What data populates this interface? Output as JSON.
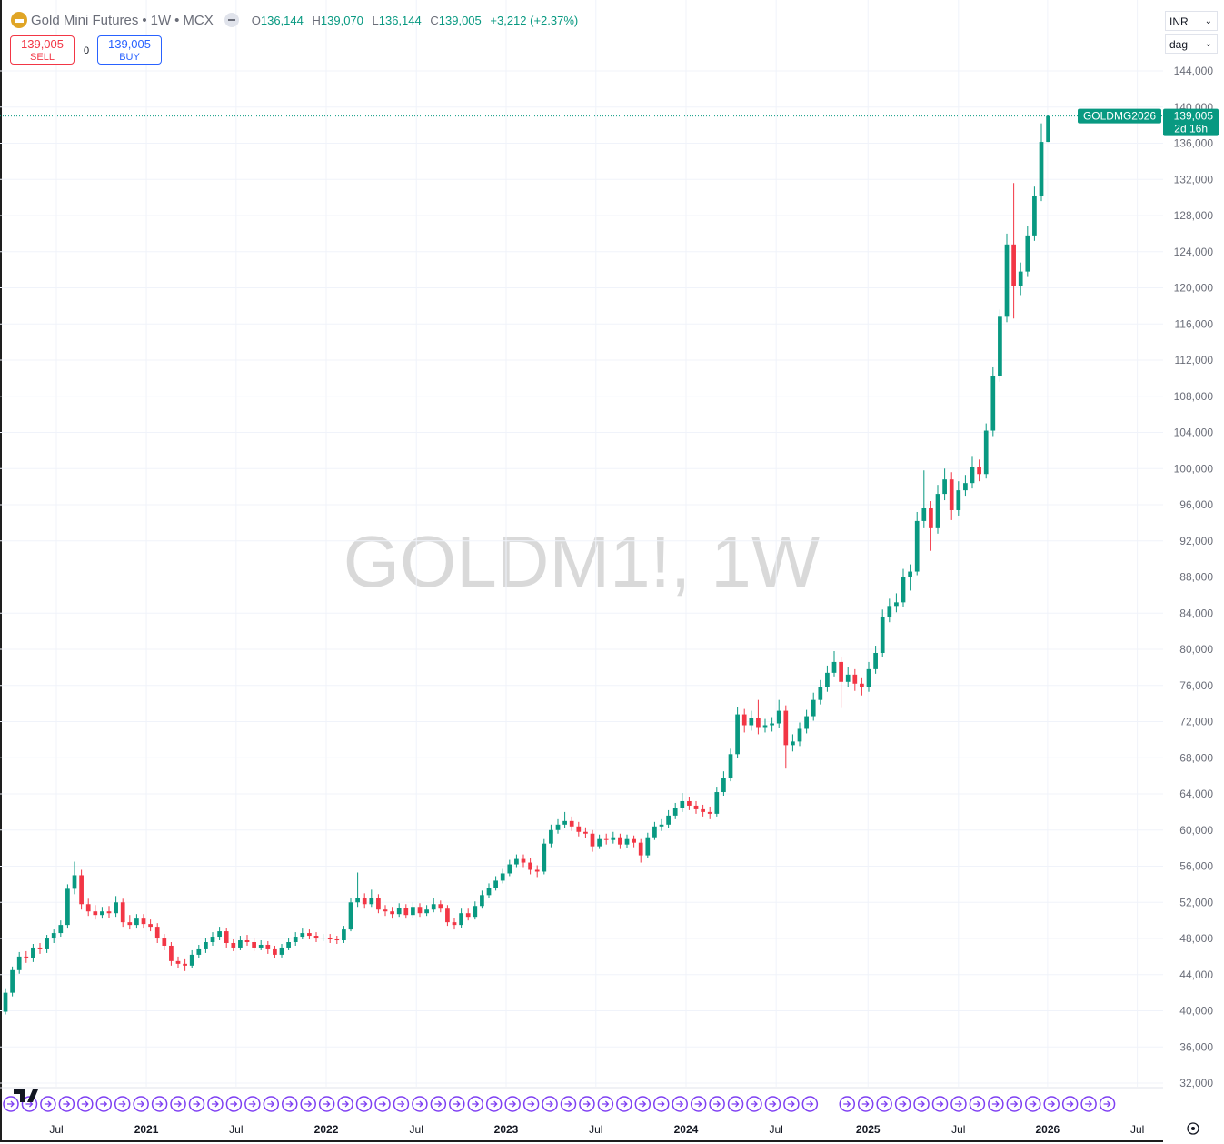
{
  "header": {
    "title": "Gold Mini Futures",
    "interval": "1W",
    "exchange": "MCX",
    "o_label": "O",
    "o": "136,144",
    "h_label": "H",
    "h": "139,070",
    "l_label": "L",
    "l": "136,144",
    "c_label": "C",
    "c": "139,005",
    "change": "+3,212 (+2.37%)",
    "sell_price": "139,005",
    "sell": "SELL",
    "spread": "0",
    "buy_price": "139,005",
    "buy": "BUY",
    "currency": "INR",
    "unit": "dag"
  },
  "chart_data": {
    "type": "candlestick",
    "watermark": "GOLDM1!, 1W",
    "grid": true,
    "ylim": [
      31600,
      151850
    ],
    "xlim": [
      -0.79,
      167.63
    ],
    "yticks": [
      {
        "value": 32000,
        "label": "32,000"
      },
      {
        "value": 36000,
        "label": "36,000"
      },
      {
        "value": 40000,
        "label": "40,000"
      },
      {
        "value": 44000,
        "label": "44,000"
      },
      {
        "value": 48000,
        "label": "48,000"
      },
      {
        "value": 52000,
        "label": "52,000"
      },
      {
        "value": 56000,
        "label": "56,000"
      },
      {
        "value": 60000,
        "label": "60,000"
      },
      {
        "value": 64000,
        "label": "64,000"
      },
      {
        "value": 68000,
        "label": "68,000"
      },
      {
        "value": 72000,
        "label": "72,000"
      },
      {
        "value": 76000,
        "label": "76,000"
      },
      {
        "value": 80000,
        "label": "80,000"
      },
      {
        "value": 84000,
        "label": "84,000"
      },
      {
        "value": 88000,
        "label": "88,000"
      },
      {
        "value": 92000,
        "label": "92,000"
      },
      {
        "value": 96000,
        "label": "96,000"
      },
      {
        "value": 100000,
        "label": "100,000"
      },
      {
        "value": 104000,
        "label": "104,000"
      },
      {
        "value": 108000,
        "label": "108,000"
      },
      {
        "value": 112000,
        "label": "112,000"
      },
      {
        "value": 116000,
        "label": "116,000"
      },
      {
        "value": 120000,
        "label": "120,000"
      },
      {
        "value": 124000,
        "label": "124,000"
      },
      {
        "value": 128000,
        "label": "128,000"
      },
      {
        "value": 132000,
        "label": "132,000"
      },
      {
        "value": 136000,
        "label": "136,000"
      },
      {
        "value": 140000,
        "label": "140,000"
      },
      {
        "value": 144000,
        "label": "144,000"
      }
    ],
    "xticks": [
      {
        "value": 7.37,
        "label": "Jul"
      },
      {
        "value": 20.4,
        "label": "2021"
      },
      {
        "value": 33.4,
        "label": "Jul"
      },
      {
        "value": 46.45,
        "label": "2022"
      },
      {
        "value": 59.5,
        "label": "Jul"
      },
      {
        "value": 72.5,
        "label": "2023"
      },
      {
        "value": 85.5,
        "label": "Jul"
      },
      {
        "value": 98.55,
        "label": "2024"
      },
      {
        "value": 111.6,
        "label": "Jul"
      },
      {
        "value": 124.9,
        "label": "2025"
      },
      {
        "value": 138.0,
        "label": "Jul"
      },
      {
        "value": 150.9,
        "label": "2026"
      },
      {
        "value": 163.9,
        "label": "Jul"
      }
    ],
    "last_price_label": "139,005",
    "countdown": "2d 16h",
    "series": [
      {
        "name": "GOLDMG2026",
        "up_color": "#089981",
        "down_color": "#f23645",
        "ohlc": [
          [
            39900,
            42400,
            39600,
            42000
          ],
          [
            42000,
            44900,
            41600,
            44500
          ],
          [
            44500,
            46500,
            44100,
            46000
          ],
          [
            46000,
            46600,
            45300,
            45800
          ],
          [
            45800,
            47400,
            45400,
            47000
          ],
          [
            47000,
            47500,
            46300,
            46800
          ],
          [
            46800,
            48400,
            46400,
            48000
          ],
          [
            48000,
            49000,
            47500,
            48600
          ],
          [
            48600,
            50000,
            48200,
            49500
          ],
          [
            49500,
            54000,
            49100,
            53500
          ],
          [
            53500,
            56500,
            52900,
            55000
          ],
          [
            55000,
            55600,
            51200,
            51800
          ],
          [
            51800,
            52400,
            50500,
            51000
          ],
          [
            51000,
            51700,
            50100,
            50600
          ],
          [
            50600,
            51500,
            50200,
            51000
          ],
          [
            51000,
            51600,
            50300,
            50800
          ],
          [
            50800,
            52700,
            50400,
            52000
          ],
          [
            52000,
            52400,
            49300,
            49800
          ],
          [
            49800,
            50600,
            49000,
            49500
          ],
          [
            49500,
            50700,
            49100,
            50200
          ],
          [
            50200,
            50700,
            49100,
            49600
          ],
          [
            49600,
            50100,
            48800,
            49300
          ],
          [
            49300,
            49700,
            47500,
            48000
          ],
          [
            48000,
            48500,
            46700,
            47200
          ],
          [
            47200,
            47600,
            45000,
            45500
          ],
          [
            45500,
            46000,
            44700,
            45200
          ],
          [
            45200,
            45700,
            44400,
            45000
          ],
          [
            45000,
            46700,
            44700,
            46200
          ],
          [
            46200,
            47300,
            45800,
            46800
          ],
          [
            46800,
            48100,
            46400,
            47600
          ],
          [
            47600,
            48700,
            47200,
            48200
          ],
          [
            48200,
            49300,
            47800,
            48800
          ],
          [
            48800,
            49200,
            47000,
            47500
          ],
          [
            47500,
            47900,
            46600,
            47000
          ],
          [
            47000,
            48300,
            46700,
            47800
          ],
          [
            47800,
            48400,
            47200,
            47600
          ],
          [
            47600,
            48000,
            46600,
            47000
          ],
          [
            47000,
            47800,
            46700,
            47300
          ],
          [
            47300,
            47700,
            46300,
            46800
          ],
          [
            46800,
            47200,
            45800,
            46200
          ],
          [
            46200,
            47400,
            45900,
            47000
          ],
          [
            47000,
            48000,
            46700,
            47600
          ],
          [
            47600,
            48700,
            47200,
            48200
          ],
          [
            48200,
            49100,
            47900,
            48600
          ],
          [
            48600,
            49000,
            47900,
            48300
          ],
          [
            48300,
            48700,
            47600,
            48000
          ],
          [
            48000,
            48500,
            47700,
            48100
          ],
          [
            48100,
            48500,
            47500,
            47900
          ],
          [
            47900,
            48300,
            47400,
            47800
          ],
          [
            47800,
            49400,
            47500,
            49000
          ],
          [
            49000,
            52500,
            48800,
            52000
          ],
          [
            52000,
            55300,
            51500,
            52500
          ],
          [
            52500,
            53000,
            51300,
            51800
          ],
          [
            51800,
            53400,
            51500,
            52500
          ],
          [
            52500,
            52900,
            50800,
            51200
          ],
          [
            51200,
            51700,
            50500,
            51000
          ],
          [
            51000,
            51500,
            50200,
            50700
          ],
          [
            50700,
            51900,
            50400,
            51400
          ],
          [
            51400,
            51800,
            50200,
            50600
          ],
          [
            50600,
            52000,
            50300,
            51500
          ],
          [
            51500,
            51900,
            50400,
            50800
          ],
          [
            50800,
            51700,
            50500,
            51200
          ],
          [
            51200,
            52500,
            50900,
            51800
          ],
          [
            51800,
            52200,
            50900,
            51300
          ],
          [
            51300,
            51700,
            49400,
            49800
          ],
          [
            49800,
            50300,
            49000,
            49500
          ],
          [
            49500,
            51300,
            49200,
            50800
          ],
          [
            50800,
            51300,
            50000,
            50400
          ],
          [
            50400,
            52100,
            50100,
            51600
          ],
          [
            51600,
            53300,
            51300,
            52800
          ],
          [
            52800,
            54100,
            52500,
            53600
          ],
          [
            53600,
            54900,
            53300,
            54400
          ],
          [
            54400,
            55700,
            54100,
            55200
          ],
          [
            55200,
            56700,
            54900,
            56200
          ],
          [
            56200,
            57300,
            55900,
            56800
          ],
          [
            56800,
            57300,
            55900,
            56400
          ],
          [
            56400,
            56900,
            55100,
            55600
          ],
          [
            55600,
            56100,
            54800,
            55400
          ],
          [
            55400,
            59000,
            55100,
            58500
          ],
          [
            58500,
            60600,
            58100,
            60000
          ],
          [
            60000,
            61200,
            59600,
            60600
          ],
          [
            60600,
            62000,
            60200,
            61000
          ],
          [
            61000,
            61500,
            59900,
            60400
          ],
          [
            60400,
            60900,
            59300,
            59800
          ],
          [
            59800,
            60300,
            59100,
            59600
          ],
          [
            59600,
            60000,
            57600,
            58200
          ],
          [
            58200,
            59500,
            57900,
            59000
          ],
          [
            59000,
            59600,
            58400,
            58900
          ],
          [
            58900,
            59800,
            58500,
            59200
          ],
          [
            59200,
            59600,
            57900,
            58400
          ],
          [
            58400,
            59500,
            58000,
            59000
          ],
          [
            59000,
            59400,
            58100,
            58600
          ],
          [
            58600,
            59000,
            56400,
            57200
          ],
          [
            57200,
            59700,
            56900,
            59200
          ],
          [
            59200,
            60900,
            58900,
            60400
          ],
          [
            60400,
            61200,
            59900,
            60600
          ],
          [
            60600,
            62200,
            60200,
            61600
          ],
          [
            61600,
            63000,
            61200,
            62400
          ],
          [
            62400,
            64100,
            62000,
            63200
          ],
          [
            63200,
            63700,
            62200,
            62700
          ],
          [
            62700,
            63200,
            61800,
            62300
          ],
          [
            62300,
            62800,
            61500,
            62000
          ],
          [
            62000,
            62600,
            61200,
            61800
          ],
          [
            61800,
            64800,
            61500,
            64200
          ],
          [
            64200,
            66500,
            63800,
            65800
          ],
          [
            65800,
            69000,
            65400,
            68400
          ],
          [
            68400,
            73600,
            68000,
            72800
          ],
          [
            72800,
            73400,
            70800,
            71600
          ],
          [
            71600,
            73200,
            71000,
            72400
          ],
          [
            72400,
            74400,
            70600,
            71400
          ],
          [
            71400,
            72300,
            70800,
            71600
          ],
          [
            71600,
            72500,
            70900,
            71800
          ],
          [
            71800,
            74400,
            71300,
            73200
          ],
          [
            73200,
            73800,
            66800,
            69400
          ],
          [
            69400,
            70600,
            68700,
            69800
          ],
          [
            69800,
            71900,
            69300,
            71200
          ],
          [
            71200,
            73300,
            70700,
            72600
          ],
          [
            72600,
            75200,
            72100,
            74400
          ],
          [
            74400,
            76600,
            73900,
            75800
          ],
          [
            75800,
            78200,
            75300,
            77400
          ],
          [
            77400,
            79800,
            77000,
            78600
          ],
          [
            78600,
            79200,
            73500,
            76400
          ],
          [
            76400,
            78000,
            75800,
            77200
          ],
          [
            77200,
            77800,
            75400,
            76200
          ],
          [
            76200,
            76800,
            74900,
            75800
          ],
          [
            75800,
            78600,
            75300,
            77800
          ],
          [
            77800,
            80400,
            77300,
            79600
          ],
          [
            79600,
            84400,
            79100,
            83600
          ],
          [
            83600,
            85600,
            83000,
            84800
          ],
          [
            84800,
            86200,
            84100,
            85200
          ],
          [
            85200,
            88900,
            84700,
            88000
          ],
          [
            88000,
            89400,
            86500,
            88600
          ],
          [
            88600,
            95200,
            88200,
            94200
          ],
          [
            94200,
            99800,
            93400,
            95600
          ],
          [
            95600,
            96400,
            90900,
            93400
          ],
          [
            93400,
            98200,
            92800,
            97200
          ],
          [
            97200,
            100000,
            96500,
            98800
          ],
          [
            98800,
            99600,
            94300,
            95400
          ],
          [
            95400,
            98600,
            94800,
            97600
          ],
          [
            97600,
            99300,
            97000,
            98400
          ],
          [
            98400,
            101400,
            97800,
            100200
          ],
          [
            100200,
            101000,
            98600,
            99400
          ],
          [
            99400,
            105000,
            98900,
            104200
          ],
          [
            104200,
            111200,
            103600,
            110200
          ],
          [
            110200,
            117600,
            109600,
            116800
          ],
          [
            116800,
            126000,
            116200,
            124800
          ],
          [
            124800,
            131600,
            116600,
            120200
          ],
          [
            120200,
            122800,
            119200,
            121800
          ],
          [
            121800,
            126800,
            121200,
            125800
          ],
          [
            125800,
            131200,
            125200,
            130200
          ],
          [
            130200,
            138200,
            129600,
            136144
          ],
          [
            136144,
            139070,
            136144,
            139005
          ]
        ]
      }
    ]
  }
}
